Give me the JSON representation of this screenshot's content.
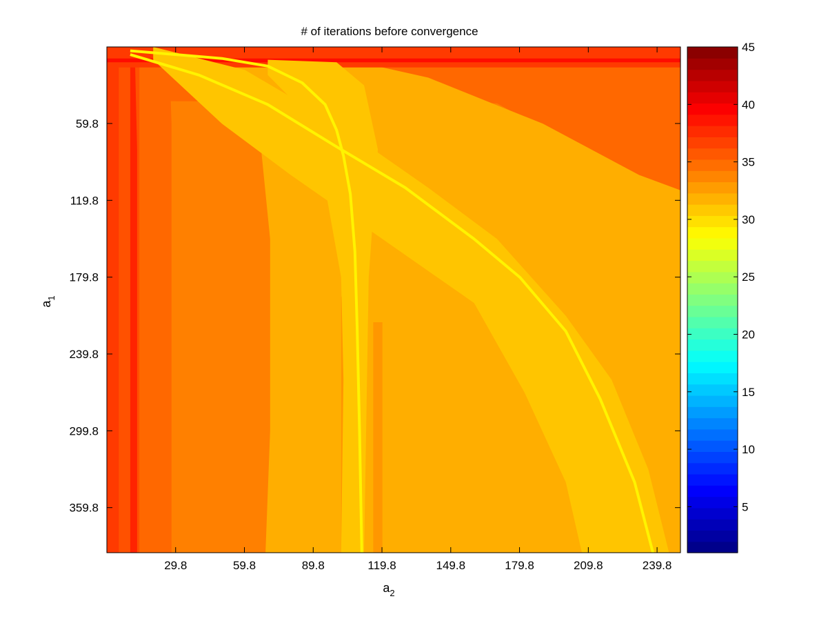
{
  "chart_data": {
    "type": "heatmap",
    "title": "# of iterations before convergence",
    "xlabel": {
      "main": "a",
      "sub": "2"
    },
    "ylabel": {
      "main": "a",
      "sub": "1"
    },
    "xlim": [
      -0.2,
      250
    ],
    "ylim": [
      0,
      395
    ],
    "y_reversed": true,
    "x_ticks": [
      29.8,
      59.8,
      89.8,
      119.8,
      149.8,
      179.8,
      209.8,
      239.8
    ],
    "x_tick_labels": [
      "29.8",
      "59.8",
      "89.8",
      "119.8",
      "149.8",
      "179.8",
      "209.8",
      "239.8"
    ],
    "y_ticks": [
      59.8,
      119.8,
      179.8,
      239.8,
      299.8,
      359.8
    ],
    "y_tick_labels": [
      "59.8",
      "119.8",
      "179.8",
      "239.8",
      "299.8",
      "359.8"
    ],
    "colorbar": {
      "colormap": "jet",
      "range": [
        1,
        45
      ],
      "ticks": [
        5,
        10,
        15,
        20,
        25,
        30,
        35,
        40,
        45
      ],
      "tick_labels": [
        "5",
        "10",
        "15",
        "20",
        "25",
        "30",
        "35",
        "40",
        "45"
      ],
      "levels": 45
    },
    "regions": [
      {
        "name": "background",
        "value": 34,
        "points": [
          [
            -0.2,
            0
          ],
          [
            250,
            0
          ],
          [
            250,
            395
          ],
          [
            -0.2,
            395
          ]
        ]
      },
      {
        "name": "upper-right-band",
        "value": 35,
        "points": [
          [
            -0.2,
            0
          ],
          [
            250,
            0
          ],
          [
            250,
            167
          ],
          [
            200,
            165
          ],
          [
            199,
            148
          ],
          [
            196,
            120
          ],
          [
            192,
            85
          ],
          [
            186,
            60
          ],
          [
            170,
            44
          ],
          [
            -0.2,
            42
          ]
        ]
      },
      {
        "name": "center-wedge",
        "value": 32,
        "points": [
          [
            27,
            18
          ],
          [
            70,
            14
          ],
          [
            110,
            12
          ],
          [
            140,
            24
          ],
          [
            190,
            60
          ],
          [
            232,
            100
          ],
          [
            250,
            112
          ],
          [
            250,
            395
          ],
          [
            69,
            395
          ],
          [
            71,
            300
          ],
          [
            71,
            150
          ],
          [
            66,
            60
          ],
          [
            52,
            32
          ]
        ]
      },
      {
        "name": "left-strip-1",
        "value": 35,
        "points": [
          [
            -0.2,
            0
          ],
          [
            27,
            6
          ],
          [
            28,
            60
          ],
          [
            28,
            395
          ],
          [
            -0.2,
            395
          ]
        ]
      },
      {
        "name": "left-strip-2",
        "value": 36,
        "points": [
          [
            -0.2,
            0
          ],
          [
            14,
            6
          ],
          [
            14,
            395
          ],
          [
            -0.2,
            395
          ]
        ]
      },
      {
        "name": "left-strip-3",
        "value": 37,
        "points": [
          [
            -0.2,
            0
          ],
          [
            5,
            4
          ],
          [
            5,
            395
          ],
          [
            -0.2,
            395
          ]
        ]
      },
      {
        "name": "left-curve-band",
        "value": 38,
        "points": [
          [
            8,
            0
          ],
          [
            10,
            6
          ],
          [
            10,
            80
          ],
          [
            10,
            395
          ],
          [
            13,
            395
          ],
          [
            13,
            80
          ],
          [
            12,
            6
          ],
          [
            11,
            0
          ]
        ]
      },
      {
        "name": "top-band",
        "value": 37,
        "points": [
          [
            -0.2,
            0
          ],
          [
            250,
            0
          ],
          [
            250,
            16
          ],
          [
            -0.2,
            16
          ]
        ]
      },
      {
        "name": "top-line",
        "value": 39,
        "points": [
          [
            -0.2,
            9
          ],
          [
            250,
            9
          ],
          [
            250,
            12
          ],
          [
            -0.2,
            12
          ]
        ]
      },
      {
        "name": "mid-stripe-1",
        "value": 33,
        "points": [
          [
            116,
            215
          ],
          [
            120,
            215
          ],
          [
            120,
            395
          ],
          [
            116,
            395
          ]
        ]
      },
      {
        "name": "mid-stripe-2",
        "value": 33,
        "points": [
          [
            102,
            195
          ],
          [
            112,
            195
          ],
          [
            112,
            395
          ],
          [
            102,
            395
          ]
        ]
      },
      {
        "name": "yellow-band-1",
        "value": 31,
        "points": [
          [
            70,
            10
          ],
          [
            100,
            12
          ],
          [
            112,
            30
          ],
          [
            118,
            80
          ],
          [
            114,
            180
          ],
          [
            112,
            395
          ],
          [
            102,
            395
          ],
          [
            103,
            260
          ],
          [
            102,
            180
          ],
          [
            96,
            120
          ],
          [
            88,
            70
          ],
          [
            80,
            40
          ],
          [
            70,
            22
          ]
        ]
      },
      {
        "name": "yellow-band-2",
        "value": 31,
        "points": [
          [
            20,
            0
          ],
          [
            60,
            18
          ],
          [
            100,
            60
          ],
          [
            140,
            110
          ],
          [
            170,
            150
          ],
          [
            200,
            210
          ],
          [
            220,
            260
          ],
          [
            236,
            330
          ],
          [
            245,
            395
          ],
          [
            207,
            395
          ],
          [
            200,
            340
          ],
          [
            182,
            270
          ],
          [
            160,
            200
          ],
          [
            120,
            150
          ],
          [
            80,
            100
          ],
          [
            50,
            60
          ],
          [
            20,
            10
          ]
        ]
      }
    ],
    "curves": [
      {
        "name": "curve-shallow",
        "value": 29,
        "points": [
          [
            10,
            6
          ],
          [
            40,
            22
          ],
          [
            70,
            45
          ],
          [
            100,
            78
          ],
          [
            130,
            110
          ],
          [
            160,
            150
          ],
          [
            180,
            180
          ],
          [
            200,
            222
          ],
          [
            215,
            275
          ],
          [
            230,
            340
          ],
          [
            238,
            395
          ]
        ]
      },
      {
        "name": "curve-steep",
        "value": 29,
        "points": [
          [
            10,
            3
          ],
          [
            50,
            9
          ],
          [
            70,
            15
          ],
          [
            85,
            28
          ],
          [
            95,
            45
          ],
          [
            100,
            65
          ],
          [
            103,
            85
          ],
          [
            106,
            115
          ],
          [
            108,
            160
          ],
          [
            109,
            220
          ],
          [
            110,
            300
          ],
          [
            111,
            395
          ]
        ]
      }
    ]
  }
}
